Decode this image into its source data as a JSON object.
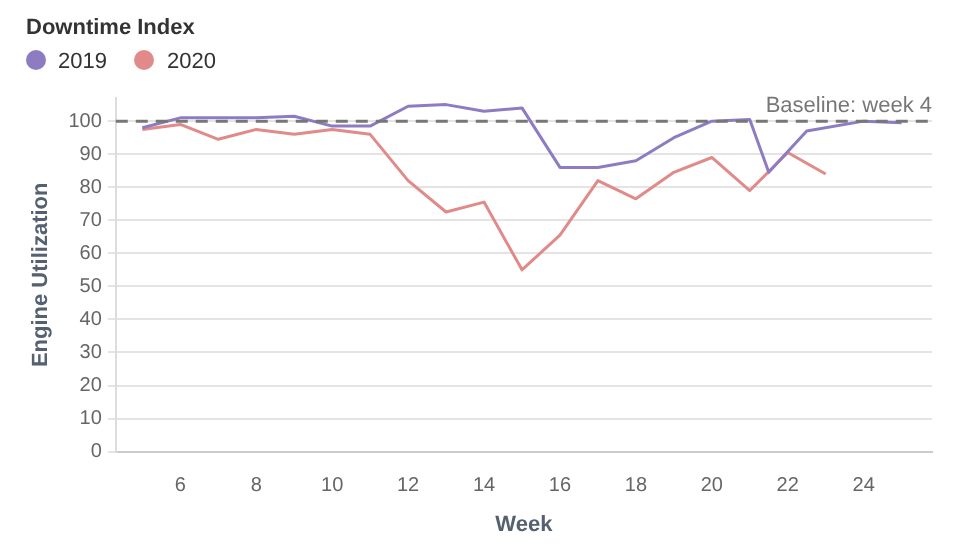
{
  "chart_data": {
    "type": "line",
    "title": "Downtime Index",
    "xlabel": "Week",
    "ylabel": "Engine Utilization",
    "series": [
      {
        "name": "2019",
        "color": "#8e7cc3",
        "x": [
          5,
          6,
          7,
          8,
          9,
          10,
          11,
          12,
          13,
          14,
          15,
          16,
          17,
          18,
          19,
          20,
          21,
          21.5,
          22.5,
          24,
          25
        ],
        "values": [
          98,
          101,
          101,
          101,
          101.5,
          98.5,
          98.5,
          104.5,
          105,
          103,
          104,
          86,
          86,
          88,
          95,
          100,
          100.5,
          84.5,
          97,
          100,
          99.5
        ]
      },
      {
        "name": "2020",
        "color": "#e08a8a",
        "x": [
          5,
          6,
          7,
          8,
          9,
          10,
          11,
          12,
          13,
          14,
          15,
          16,
          17,
          18,
          19,
          20,
          21,
          22,
          23
        ],
        "values": [
          97.5,
          99,
          94.5,
          97.5,
          96,
          97.5,
          96,
          82,
          72.5,
          75.5,
          55,
          65.5,
          82,
          76.5,
          84.5,
          89,
          79,
          90.5,
          84
        ]
      }
    ],
    "xlim": [
      4.3,
      25.8
    ],
    "xticks": [
      6,
      8,
      10,
      12,
      14,
      16,
      18,
      20,
      22,
      24
    ],
    "ylim": [
      0,
      107
    ],
    "yticks": [
      0,
      10,
      20,
      30,
      40,
      50,
      60,
      70,
      80,
      90,
      100
    ],
    "ref_lines": [
      {
        "axis": "y",
        "value": 100,
        "label": "Baseline: week 4",
        "color": "#777777",
        "line_style": "dashed"
      }
    ],
    "grid": "y",
    "legend": "top left",
    "marker": "none",
    "line_style": "solid"
  }
}
